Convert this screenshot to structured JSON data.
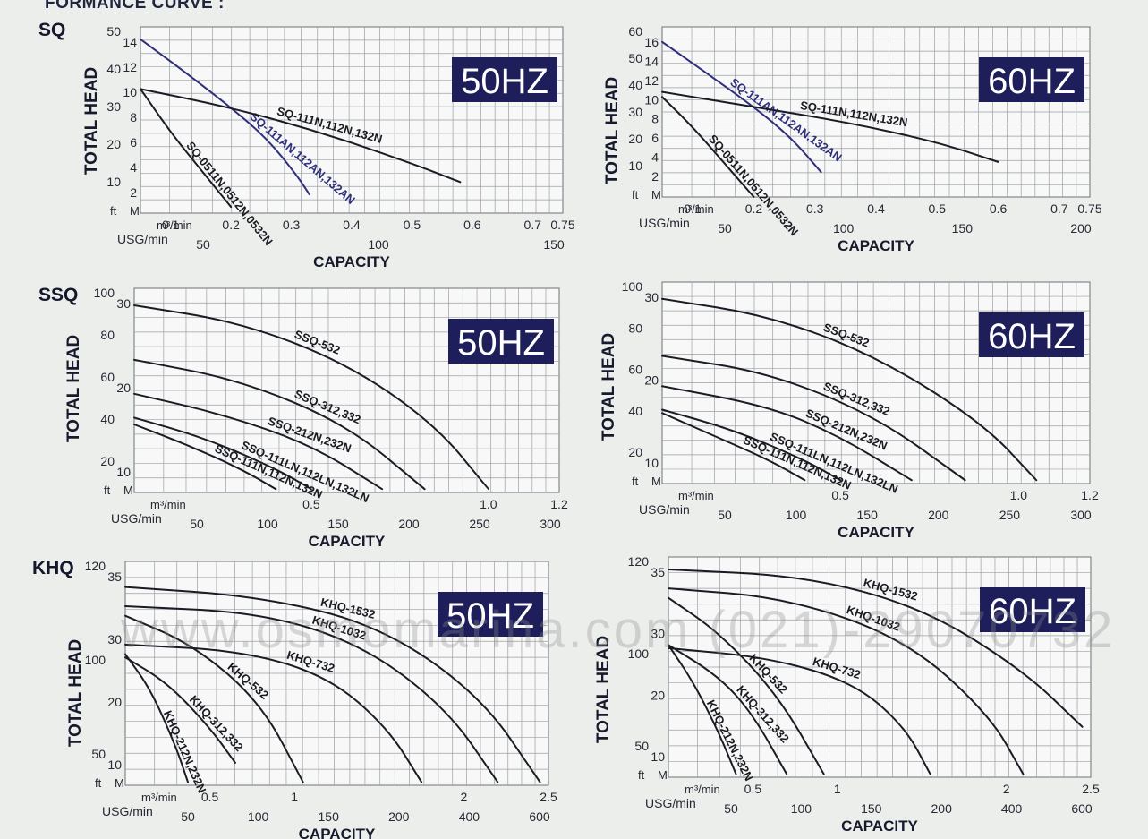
{
  "page_header": "FORMANCE CURVE :",
  "watermark": "www.osmomarina.com (021)-29070732",
  "colors": {
    "plot_bg": "#f7f8f7",
    "grid": "#9aa0a2",
    "curve": "#1b1b24",
    "curve_blue": "#2f2e7c",
    "freq_box": "#1d1e5a",
    "freq_text": "#ffffff"
  },
  "chart_data": [
    {
      "type": "line",
      "family": "SQ",
      "freq": "50HZ",
      "ylabel": "TOTAL HEAD",
      "xlabel": "CAPACITY",
      "x_unit": "m³/min",
      "usg_unit": "USG/min",
      "y_unit_ft": "ft",
      "y_unit_m": "M",
      "xlim": [
        0.05,
        0.75
      ],
      "ylim": [
        0,
        15
      ],
      "ft_ticks": [
        "50",
        "40",
        "30",
        "20",
        "10"
      ],
      "m_ticks": [
        "14",
        "12",
        "10",
        "8",
        "6",
        "4",
        "2"
      ],
      "x_ticks": [
        "0.1",
        "0.2",
        "0.3",
        "0.4",
        "0.5",
        "0.6",
        "0.7",
        "0.75"
      ],
      "usg_ticks": [
        "50",
        "100",
        "150"
      ],
      "series": [
        {
          "name": "SQ-111AN,112AN,132AN",
          "x": [
            0.05,
            0.12,
            0.2,
            0.26,
            0.31,
            0.33
          ],
          "y": [
            14,
            11.5,
            8.5,
            6,
            3,
            1.5
          ]
        },
        {
          "name": "SQ-111N,112N,132N",
          "x": [
            0.05,
            0.2,
            0.35,
            0.5,
            0.58
          ],
          "y": [
            10,
            8.5,
            6.5,
            4,
            2.5
          ]
        },
        {
          "name": "SQ-0511N,0512N,0532N",
          "x": [
            0.05,
            0.1,
            0.15,
            0.2
          ],
          "y": [
            10,
            6.5,
            3.5,
            0.5
          ]
        }
      ]
    },
    {
      "type": "line",
      "family": "SQ",
      "freq": "60HZ",
      "ylabel": "TOTAL HEAD",
      "xlabel": "CAPACITY",
      "x_unit": "m³/min",
      "usg_unit": "USG/min",
      "y_unit_ft": "ft",
      "y_unit_m": "M",
      "xlim": [
        0.05,
        0.75
      ],
      "ylim": [
        0,
        17
      ],
      "ft_ticks": [
        "60",
        "50",
        "40",
        "30",
        "20",
        "10"
      ],
      "m_ticks": [
        "16",
        "14",
        "12",
        "10",
        "8",
        "6",
        "4",
        "2"
      ],
      "x_ticks": [
        "0.1",
        "0.2",
        "0.3",
        "0.4",
        "0.5",
        "0.6",
        "0.7",
        "0.75"
      ],
      "usg_ticks": [
        "50",
        "100",
        "150",
        "200"
      ],
      "series": [
        {
          "name": "SQ-111AN,112AN,132AN",
          "x": [
            0.05,
            0.12,
            0.2,
            0.26,
            0.31
          ],
          "y": [
            15.5,
            12.5,
            9,
            6,
            2.5
          ]
        },
        {
          "name": "SQ-111N,112N,132N",
          "x": [
            0.05,
            0.2,
            0.35,
            0.5,
            0.6
          ],
          "y": [
            10.5,
            9,
            7.5,
            5.5,
            3.5
          ]
        },
        {
          "name": "SQ-0511N,0512N,0532N",
          "x": [
            0.05,
            0.1,
            0.15,
            0.2
          ],
          "y": [
            10,
            7,
            3.5,
            0
          ]
        }
      ]
    },
    {
      "type": "line",
      "family": "SSQ",
      "freq": "50HZ",
      "ylabel": "TOTAL HEAD",
      "xlabel": "CAPACITY",
      "x_unit": "m³/min",
      "usg_unit": "USG/min",
      "y_unit_ft": "ft",
      "y_unit_m": "M",
      "xlim": [
        0,
        1.2
      ],
      "ylim": [
        0,
        30
      ],
      "ft_ticks": [
        "100",
        "80",
        "60",
        "40",
        "20"
      ],
      "m_ticks": [
        "30",
        "20",
        "10"
      ],
      "x_ticks": [
        "0.5",
        "1.0",
        "1.2"
      ],
      "usg_ticks": [
        "50",
        "100",
        "150",
        "200",
        "250",
        "300"
      ],
      "series": [
        {
          "name": "SSQ-532",
          "x": [
            0,
            0.3,
            0.6,
            0.85,
            1.0
          ],
          "y": [
            27.5,
            25,
            19,
            10,
            0.5
          ]
        },
        {
          "name": "SSQ-312,332",
          "x": [
            0,
            0.3,
            0.6,
            0.82
          ],
          "y": [
            19.5,
            16.5,
            10,
            0.5
          ]
        },
        {
          "name": "SSQ-212N,232N",
          "x": [
            0,
            0.25,
            0.5,
            0.7
          ],
          "y": [
            14.5,
            11.5,
            7,
            0.5
          ]
        },
        {
          "name": "SSQ-111LN,112LN,132LN",
          "x": [
            0,
            0.2,
            0.4,
            0.5
          ],
          "y": [
            11,
            8,
            3.5,
            0.5
          ]
        },
        {
          "name": "SSQ-111N,112N,132N",
          "x": [
            0,
            0.15,
            0.3,
            0.4
          ],
          "y": [
            10,
            7,
            3.5,
            0.5
          ]
        }
      ]
    },
    {
      "type": "line",
      "family": "SSQ",
      "freq": "60HZ",
      "ylabel": "TOTAL HEAD",
      "xlabel": "CAPACITY",
      "x_unit": "m³/min",
      "usg_unit": "USG/min",
      "y_unit_ft": "ft",
      "y_unit_m": "M",
      "xlim": [
        0,
        1.2
      ],
      "ylim": [
        0,
        30
      ],
      "ft_ticks": [
        "100",
        "80",
        "60",
        "40",
        "20"
      ],
      "m_ticks": [
        "30",
        "20",
        "10"
      ],
      "x_ticks": [
        "0.5",
        "1.0",
        "1.2"
      ],
      "usg_ticks": [
        "50",
        "100",
        "150",
        "200",
        "250",
        "300"
      ],
      "series": [
        {
          "name": "SSQ-532",
          "x": [
            0,
            0.3,
            0.6,
            0.9,
            1.05
          ],
          "y": [
            27.5,
            25,
            19,
            9,
            0.5
          ]
        },
        {
          "name": "SSQ-312,332",
          "x": [
            0,
            0.3,
            0.6,
            0.85
          ],
          "y": [
            19,
            16.5,
            10,
            0.5
          ]
        },
        {
          "name": "SSQ-212N,232N",
          "x": [
            0,
            0.3,
            0.5,
            0.7
          ],
          "y": [
            14.5,
            11.5,
            7,
            0.5
          ]
        },
        {
          "name": "SSQ-111LN,112LN,132LN",
          "x": [
            0,
            0.2,
            0.4,
            0.5
          ],
          "y": [
            11,
            8,
            3.5,
            0.5
          ]
        },
        {
          "name": "SSQ-111N,112N,132N",
          "x": [
            0,
            0.15,
            0.3,
            0.4
          ],
          "y": [
            10.5,
            7,
            3.5,
            0.5
          ]
        }
      ]
    },
    {
      "type": "line",
      "family": "KHQ",
      "freq": "50HZ",
      "ylabel": "TOTAL HEAD",
      "xlabel": "CAPACITY",
      "x_unit": "m³/min",
      "usg_unit": "USG/min",
      "y_unit_ft": "ft",
      "y_unit_m": "M",
      "xlim": [
        0,
        2.5
      ],
      "ylim": [
        0,
        35
      ],
      "ft_ticks": [
        "120",
        "100",
        "50"
      ],
      "m_ticks": [
        "35",
        "30",
        "20",
        "10"
      ],
      "x_ticks": [
        "0.5",
        "1",
        "2",
        "2.5"
      ],
      "usg_ticks": [
        "50",
        "100",
        "150",
        "200",
        "400",
        "600"
      ],
      "series": [
        {
          "name": "KHQ-1532",
          "x": [
            0,
            0.8,
            1.5,
            2.1,
            2.45
          ],
          "y": [
            31,
            29.5,
            25,
            14,
            0.5
          ]
        },
        {
          "name": "KHQ-1032",
          "x": [
            0,
            0.8,
            1.4,
            1.9,
            2.2
          ],
          "y": [
            28,
            27,
            22,
            12,
            0.5
          ]
        },
        {
          "name": "KHQ-732",
          "x": [
            0,
            0.7,
            1.2,
            1.55,
            1.75
          ],
          "y": [
            22,
            21,
            17,
            9,
            0.5
          ]
        },
        {
          "name": "KHQ-532",
          "x": [
            0,
            0.4,
            0.8,
            1.05
          ],
          "y": [
            26.5,
            22,
            13,
            0.5
          ]
        },
        {
          "name": "KHQ-312,332",
          "x": [
            0,
            0.25,
            0.5,
            0.65
          ],
          "y": [
            20,
            16,
            9,
            3.5
          ]
        },
        {
          "name": "KHQ-212N,232N",
          "x": [
            0,
            0.15,
            0.3,
            0.37
          ],
          "y": [
            20.5,
            15,
            6,
            0.5
          ]
        }
      ]
    },
    {
      "type": "line",
      "family": "KHQ",
      "freq": "60HZ",
      "ylabel": "TOTAL HEAD",
      "xlabel": "CAPACITY",
      "x_unit": "m³/min",
      "usg_unit": "USG/min",
      "y_unit_ft": "ft",
      "y_unit_m": "M",
      "xlim": [
        0,
        2.5
      ],
      "ylim": [
        0,
        35
      ],
      "ft_ticks": [
        "120",
        "100",
        "50"
      ],
      "m_ticks": [
        "35",
        "30",
        "20",
        "10"
      ],
      "x_ticks": [
        "0.5",
        "1",
        "2",
        "2.5"
      ],
      "usg_ticks": [
        "50",
        "100",
        "150",
        "200",
        "400",
        "600"
      ],
      "series": [
        {
          "name": "KHQ-1532",
          "x": [
            0,
            0.8,
            1.5,
            2.1,
            2.45
          ],
          "y": [
            33,
            32,
            27,
            17,
            8
          ]
        },
        {
          "name": "KHQ-1032",
          "x": [
            0,
            0.7,
            1.4,
            1.9,
            2.1
          ],
          "y": [
            30,
            28.5,
            22,
            10,
            0.5
          ]
        },
        {
          "name": "KHQ-732",
          "x": [
            0,
            0.6,
            1.1,
            1.4,
            1.55
          ],
          "y": [
            20.5,
            19,
            15,
            8,
            0.5
          ]
        },
        {
          "name": "KHQ-532",
          "x": [
            0,
            0.3,
            0.65,
            0.92
          ],
          "y": [
            28.5,
            23,
            13,
            0.5
          ]
        },
        {
          "name": "KHQ-312,332",
          "x": [
            0,
            0.3,
            0.5,
            0.7
          ],
          "y": [
            21,
            16,
            10,
            0.5
          ]
        },
        {
          "name": "KHQ-212N,232N",
          "x": [
            0,
            0.15,
            0.3,
            0.4
          ],
          "y": [
            21,
            15,
            7,
            0.5
          ]
        }
      ]
    }
  ]
}
